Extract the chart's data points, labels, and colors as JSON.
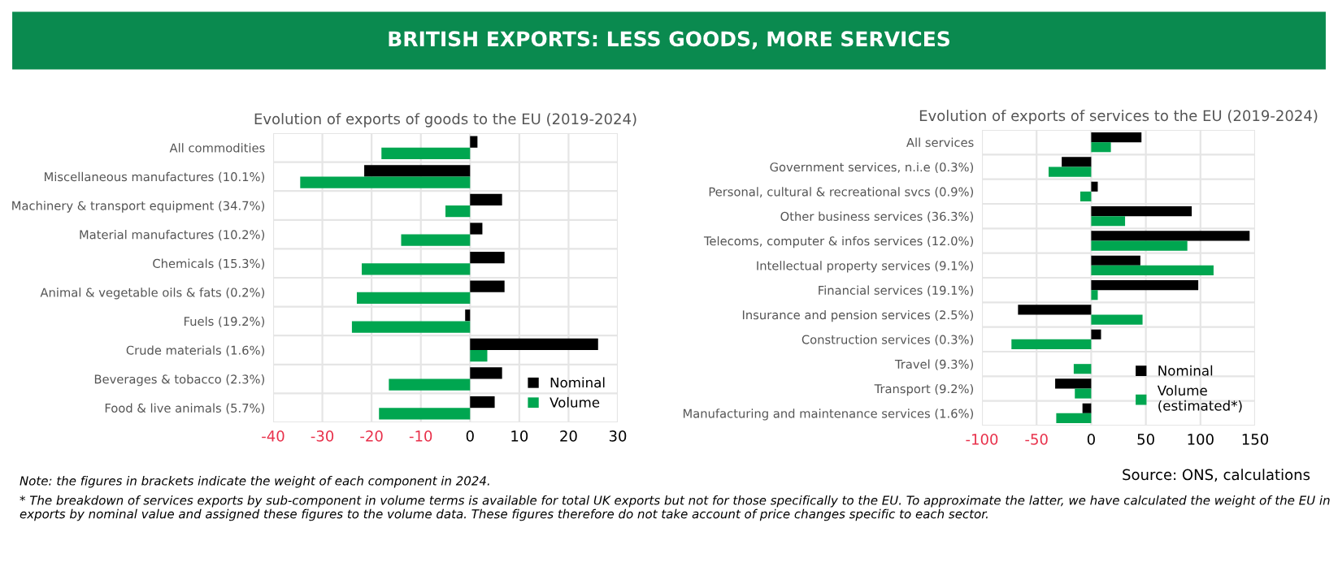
{
  "chart_data": [
    {
      "type": "bar",
      "orientation": "horizontal",
      "title": "BRITISH EXPORTS: LESS GOODS, MORE SERVICES",
      "subtitle": "Evolution of exports of goods to the EU (2019-2024)",
      "categories": [
        "All commodities",
        "Miscellaneous manufactures (10.1%)",
        "Machinery & transport equipment (34.7%)",
        "Material manufactures (10.2%)",
        "Chemicals (15.3%)",
        "Animal & vegetable oils & fats (0.2%)",
        "Fuels (19.2%)",
        "Crude materials (1.6%)",
        "Beverages & tobacco (2.3%)",
        "Food & live animals (5.7%)"
      ],
      "series": [
        {
          "name": "Nominal",
          "color": "#000000",
          "values": [
            1.5,
            -21.5,
            6.5,
            2.5,
            7,
            7,
            -1,
            26,
            6.5,
            5
          ]
        },
        {
          "name": "Volume",
          "color": "#00a650",
          "values": [
            -18,
            -34.5,
            -5,
            -14,
            -22,
            -23,
            -24,
            3.5,
            -16.5,
            -18.5
          ]
        }
      ],
      "xlim": [
        -40,
        30
      ],
      "xticks": [
        -40,
        -30,
        -20,
        -10,
        0,
        10,
        20,
        30
      ],
      "grid": "x",
      "legend": "bottom right",
      "annotations": [
        "Note: the figures in brackets indicate the weight of each component in 2024.",
        "* The breakdown of services exports by sub-component in volume terms is available for total UK exports but not for those specifically to the EU. To approximate the latter, we have calculated the weight of the EU in exports by nominal value and assigned these figures to the volume data. These figures therefore do not take account of price changes specific to each sector."
      ]
    },
    {
      "type": "bar",
      "orientation": "horizontal",
      "subtitle": "Evolution of exports of services to the EU (2019-2024)",
      "categories": [
        "All services",
        "Government services, n.i.e (0.3%)",
        "Personal, cultural & recreational svcs (0.9%)",
        "Other business services (36.3%)",
        "Telecoms, computer & infos services (12.0%)",
        "Intellectual property services (9.1%)",
        "Financial services (19.1%)",
        "Insurance and pension services (2.5%)",
        "Construction services (0.3%)",
        "Travel (9.3%)",
        "Transport (9.2%)",
        "Manufacturing and maintenance services (1.6%)"
      ],
      "series": [
        {
          "name": "Nominal",
          "color": "#000000",
          "values": [
            46,
            -27,
            6,
            92,
            145,
            45,
            98,
            -67,
            9,
            null,
            -33,
            -8
          ]
        },
        {
          "name": "Volume\n(estimated*)",
          "color": "#00a650",
          "values": [
            18,
            -39,
            -10,
            31,
            88,
            112,
            6,
            47,
            -73,
            -16,
            -15,
            -32
          ]
        }
      ],
      "xlim": [
        -100,
        150
      ],
      "xticks": [
        -100,
        -50,
        0,
        50,
        100,
        150
      ],
      "grid": "x",
      "legend": "bottom right",
      "annotations": [
        "Source: ONS, calculations"
      ]
    }
  ]
}
